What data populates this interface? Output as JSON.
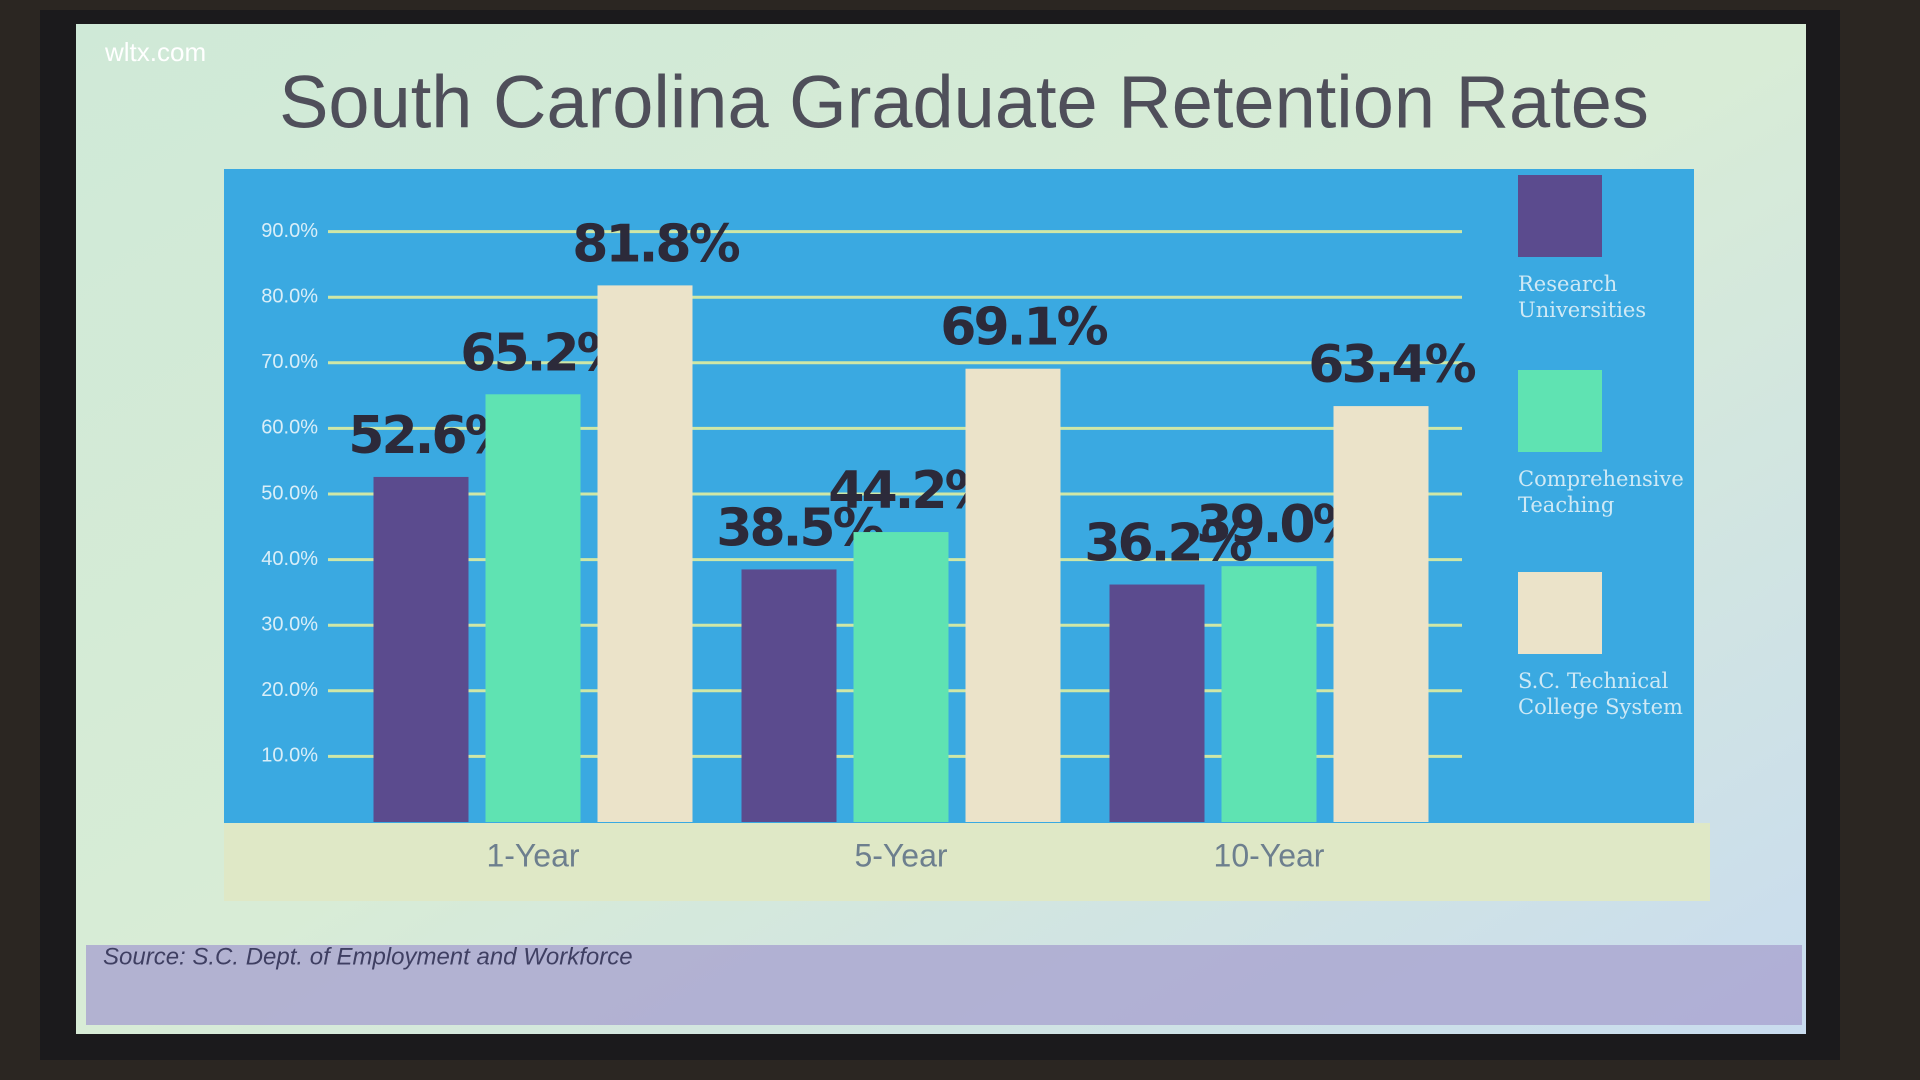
{
  "watermark": "wltx.com",
  "chart_data": {
    "type": "bar",
    "title": "South Carolina Graduate Retention Rates",
    "source": "Source: S.C. Dept. of Employment and Workforce",
    "categories": [
      "1-Year",
      "5-Year",
      "10-Year"
    ],
    "series": [
      {
        "name": "Research Universities",
        "color": "#5b4b8e",
        "values": [
          52.6,
          38.5,
          36.2
        ],
        "value_labels": [
          "52.6%",
          "38.5%",
          "36.2%"
        ]
      },
      {
        "name": "Comprehensive Teaching",
        "color": "#5fe3b2",
        "values": [
          65.2,
          44.2,
          39.0
        ],
        "value_labels": [
          "65.2%",
          "44.2%",
          "39.0%"
        ]
      },
      {
        "name": "S.C. Technical College System",
        "color": "#ebe3c9",
        "values": [
          81.8,
          69.1,
          63.4
        ],
        "value_labels": [
          "81.8%",
          "69.1%",
          "63.4%"
        ]
      }
    ],
    "ylim": [
      0,
      100
    ],
    "yticks": [
      {
        "value": 10,
        "label": "10.0%"
      },
      {
        "value": 20,
        "label": "20.0%"
      },
      {
        "value": 30,
        "label": "30.0%"
      },
      {
        "value": 40,
        "label": "40.0%"
      },
      {
        "value": 50,
        "label": "50.0%"
      },
      {
        "value": 60,
        "label": "60.0%"
      },
      {
        "value": 70,
        "label": "70.0%"
      },
      {
        "value": 80,
        "label": "80.0%"
      },
      {
        "value": 90,
        "label": "90.0%"
      }
    ],
    "grid": true,
    "legend": "right"
  }
}
